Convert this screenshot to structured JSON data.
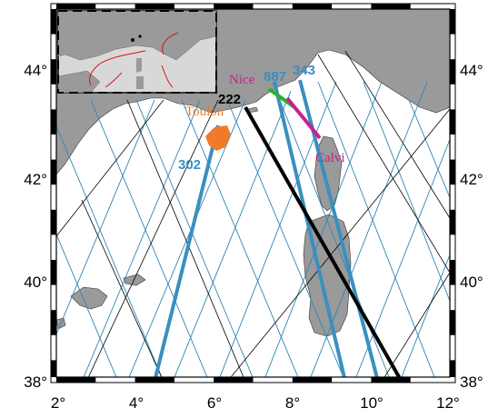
{
  "axes": {
    "lon_ticks": [
      "2°",
      "4°",
      "6°",
      "8°",
      "10°",
      "12°"
    ],
    "lat_ticks": [
      "38°",
      "40°",
      "42°",
      "44°"
    ]
  },
  "places": {
    "nice": "Nice",
    "calvi": "Calvi",
    "toulon": "Toulon"
  },
  "tracks": {
    "t887": "887",
    "t343": "343",
    "t222": "222",
    "t302": "302"
  },
  "colors": {
    "land": "#9a9a9a",
    "sea": "#ffffff",
    "thin_track": "#2e86b5",
    "thick_track": "#3a8fbf",
    "black_track": "#000000",
    "nice_label": "#c8208c",
    "calvi_label": "#c8208c",
    "toulon_label": "#e87a2a",
    "track_label": "#3a8fbf",
    "green_segment": "#2bb02b",
    "magenta_segment": "#c8208c",
    "orange_patch": "#f07a2a"
  }
}
